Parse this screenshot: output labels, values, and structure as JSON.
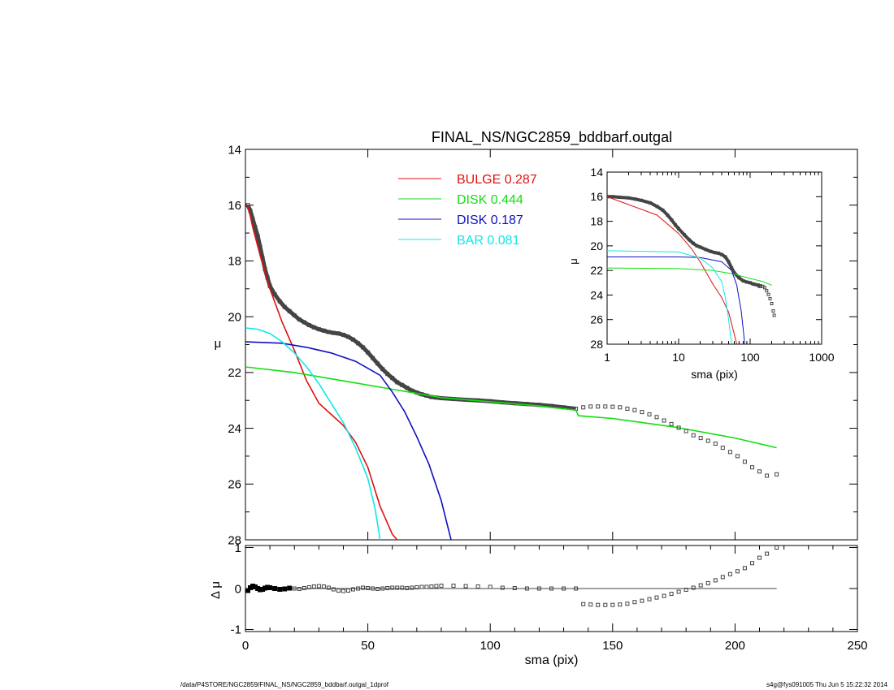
{
  "title": "FINAL_NS/NGC2859_bddbarf.outgal",
  "footer": {
    "left": "/data/P4STORE/NGC2859/FINAL_NS/NGC2859_bddbarf.outgal_1dprof",
    "right": "s4g@fys091005  Thu Jun  5 15:22:32 2014"
  },
  "colors": {
    "bulge": "#e01010",
    "disk1": "#10e010",
    "disk2": "#1010c0",
    "bar": "#10e8e8",
    "data": "#444444",
    "axis": "#000000"
  },
  "legend": [
    {
      "key": "bulge",
      "label": "BULGE",
      "value": "0.287",
      "color": "#e01010"
    },
    {
      "key": "disk1",
      "label": "DISK",
      "value": "0.444",
      "color": "#10e010"
    },
    {
      "key": "disk2",
      "label": "DISK",
      "value": "0.187",
      "color": "#1010c0"
    },
    {
      "key": "bar",
      "label": "BAR",
      "value": "0.081",
      "color": "#10e8e8"
    }
  ],
  "chart_data": [
    {
      "name": "main",
      "type": "line",
      "xlabel": "sma (pix)",
      "ylabel": "μ",
      "xlim": [
        0,
        250
      ],
      "ylim": [
        28,
        14
      ],
      "xticks": [
        0,
        50,
        100,
        150,
        200,
        250
      ],
      "yticks": [
        14,
        16,
        18,
        20,
        22,
        24,
        26,
        28
      ],
      "series": [
        {
          "name": "BULGE",
          "key": "bulge",
          "x": [
            1,
            3,
            6,
            10,
            15,
            20,
            25,
            30,
            35,
            40,
            45,
            50,
            55,
            60,
            62
          ],
          "y": [
            16.0,
            16.8,
            17.8,
            19.0,
            20.2,
            21.2,
            22.3,
            23.1,
            23.5,
            23.9,
            24.5,
            25.4,
            26.8,
            27.8,
            28.0
          ]
        },
        {
          "name": "DISK",
          "key": "disk1",
          "x": [
            0,
            20,
            40,
            60,
            80,
            100,
            120,
            135,
            136,
            150,
            175,
            200,
            217
          ],
          "y": [
            21.8,
            22.0,
            22.3,
            22.6,
            22.9,
            23.05,
            23.2,
            23.35,
            23.55,
            23.65,
            23.95,
            24.35,
            24.7
          ]
        },
        {
          "name": "DISK",
          "key": "disk2",
          "x": [
            0,
            15,
            25,
            35,
            45,
            55,
            60,
            65,
            70,
            75,
            80,
            82,
            84
          ],
          "y": [
            20.9,
            20.95,
            21.1,
            21.3,
            21.6,
            22.1,
            22.7,
            23.4,
            24.3,
            25.3,
            26.6,
            27.3,
            28.0
          ]
        },
        {
          "name": "BAR",
          "key": "bar",
          "x": [
            0,
            5,
            10,
            15,
            20,
            25,
            30,
            35,
            40,
            45,
            50,
            53,
            55
          ],
          "y": [
            20.4,
            20.45,
            20.6,
            20.9,
            21.3,
            21.8,
            22.4,
            23.1,
            23.8,
            24.7,
            25.8,
            26.9,
            28.0
          ]
        }
      ],
      "profile": {
        "x": [
          1,
          2,
          3,
          4,
          5,
          6,
          7,
          8,
          9,
          10,
          12,
          14,
          16,
          18,
          20,
          22,
          24,
          26,
          28,
          30,
          32,
          34,
          36,
          38,
          40,
          42,
          44,
          46,
          48,
          50,
          52,
          54,
          56,
          58,
          60,
          62,
          64,
          66,
          68,
          70,
          72,
          74,
          76,
          78,
          80,
          85,
          90,
          95,
          100,
          105,
          110,
          115,
          120,
          125,
          130,
          135
        ],
        "y": [
          16.0,
          16.2,
          16.5,
          16.8,
          17.1,
          17.5,
          17.9,
          18.3,
          18.6,
          18.9,
          19.2,
          19.45,
          19.65,
          19.8,
          19.95,
          20.1,
          20.2,
          20.3,
          20.38,
          20.45,
          20.5,
          20.55,
          20.58,
          20.6,
          20.65,
          20.72,
          20.82,
          20.95,
          21.1,
          21.28,
          21.48,
          21.68,
          21.88,
          22.05,
          22.2,
          22.35,
          22.45,
          22.55,
          22.65,
          22.72,
          22.78,
          22.83,
          22.88,
          22.9,
          22.92,
          22.95,
          22.98,
          23.0,
          23.03,
          23.07,
          23.1,
          23.13,
          23.16,
          23.2,
          23.25,
          23.3
        ]
      },
      "outer_points": {
        "x": [
          138,
          141,
          144,
          147,
          150,
          153,
          156,
          159,
          162,
          165,
          168,
          171,
          174,
          177,
          180,
          183,
          186,
          189,
          192,
          195,
          198,
          201,
          204,
          207,
          210,
          213,
          217
        ],
        "y": [
          23.25,
          23.22,
          23.22,
          23.22,
          23.23,
          23.25,
          23.3,
          23.35,
          23.42,
          23.5,
          23.6,
          23.72,
          23.85,
          23.98,
          24.1,
          24.25,
          24.35,
          24.45,
          24.55,
          24.7,
          24.85,
          25.0,
          25.2,
          25.4,
          25.55,
          25.7,
          25.65
        ]
      }
    },
    {
      "name": "residual",
      "type": "scatter",
      "xlabel": "sma (pix)",
      "ylabel": "Δ μ",
      "xlim": [
        0,
        250
      ],
      "ylim": [
        -1.05,
        1.05
      ],
      "xticks": [
        0,
        50,
        100,
        150,
        200,
        250
      ],
      "yticks": [
        -1,
        0,
        1
      ],
      "zero_line_x": [
        0,
        217
      ],
      "x": [
        1,
        2,
        3,
        4,
        5,
        6,
        7,
        8,
        9,
        10,
        12,
        14,
        16,
        18,
        20,
        22,
        24,
        26,
        28,
        30,
        32,
        34,
        36,
        38,
        40,
        42,
        44,
        46,
        48,
        50,
        52,
        54,
        56,
        58,
        60,
        62,
        64,
        66,
        68,
        70,
        72,
        74,
        76,
        78,
        80,
        85,
        90,
        95,
        100,
        105,
        110,
        115,
        120,
        125,
        130,
        135,
        138,
        141,
        144,
        147,
        150,
        153,
        156,
        159,
        162,
        165,
        168,
        171,
        174,
        177,
        180,
        183,
        186,
        189,
        192,
        195,
        198,
        201,
        204,
        207,
        210,
        213,
        217
      ],
      "y": [
        -0.05,
        0.02,
        0.06,
        0.04,
        0.0,
        -0.03,
        -0.02,
        0.01,
        0.03,
        0.02,
        0.0,
        -0.02,
        -0.01,
        0.01,
        0.0,
        -0.01,
        0.01,
        0.03,
        0.05,
        0.06,
        0.05,
        0.02,
        -0.02,
        -0.05,
        -0.06,
        -0.05,
        -0.02,
        0.0,
        0.02,
        0.01,
        0.0,
        -0.01,
        0.0,
        0.01,
        0.02,
        0.02,
        0.02,
        0.01,
        0.02,
        0.03,
        0.04,
        0.04,
        0.05,
        0.06,
        0.07,
        0.07,
        0.06,
        0.05,
        0.04,
        0.02,
        0.01,
        0.0,
        0.0,
        0.0,
        0.0,
        0.0,
        -0.38,
        -0.39,
        -0.4,
        -0.4,
        -0.4,
        -0.39,
        -0.37,
        -0.33,
        -0.3,
        -0.26,
        -0.22,
        -0.18,
        -0.13,
        -0.08,
        -0.03,
        0.02,
        0.08,
        0.13,
        0.2,
        0.28,
        0.35,
        0.42,
        0.5,
        0.62,
        0.75,
        0.85,
        1.0
      ]
    },
    {
      "name": "inset",
      "type": "line",
      "xlabel": "sma (pix)",
      "ylabel": "μ",
      "xscale": "log",
      "xlim": [
        1,
        1000
      ],
      "ylim": [
        28,
        14
      ],
      "xticks": [
        1,
        10,
        100,
        1000
      ],
      "xticklabels": [
        "1",
        "10",
        "100",
        "1000"
      ],
      "yticks": [
        14,
        16,
        18,
        20,
        22,
        24,
        26,
        28
      ],
      "series": [
        {
          "name": "BULGE",
          "key": "bulge",
          "x": [
            1,
            5,
            10,
            15,
            20,
            30,
            40,
            50,
            60,
            65
          ],
          "y": [
            16.0,
            17.5,
            19.0,
            20.2,
            21.3,
            23.1,
            24.2,
            25.4,
            27.2,
            28.0
          ]
        },
        {
          "name": "DISK",
          "key": "disk1",
          "x": [
            1,
            10,
            30,
            60,
            100,
            150,
            200
          ],
          "y": [
            21.8,
            21.85,
            22.0,
            22.3,
            22.65,
            22.9,
            23.2
          ]
        },
        {
          "name": "DISK",
          "key": "disk2",
          "x": [
            1,
            10,
            20,
            40,
            55,
            65,
            75,
            80,
            84
          ],
          "y": [
            20.9,
            20.9,
            20.95,
            21.3,
            22.0,
            23.2,
            25.3,
            26.8,
            28.0
          ]
        },
        {
          "name": "BAR",
          "key": "bar",
          "x": [
            1,
            10,
            20,
            30,
            40,
            45,
            50,
            55
          ],
          "y": [
            20.4,
            20.5,
            21.0,
            21.8,
            22.9,
            24.2,
            26.0,
            28.0
          ]
        }
      ],
      "profile": {
        "x": [
          1,
          1.2,
          1.5,
          2,
          2.5,
          3,
          4,
          5,
          6,
          7,
          8,
          9,
          10,
          12,
          14,
          16,
          18,
          20,
          24,
          28,
          32,
          36,
          40,
          45,
          50,
          55,
          60,
          70,
          80,
          90,
          100,
          110,
          120,
          130,
          135
        ],
        "y": [
          16.0,
          16.0,
          16.05,
          16.1,
          16.2,
          16.3,
          16.5,
          16.8,
          17.1,
          17.5,
          17.9,
          18.3,
          18.6,
          19.1,
          19.5,
          19.8,
          20.0,
          20.1,
          20.3,
          20.45,
          20.55,
          20.6,
          20.7,
          20.9,
          21.3,
          21.8,
          22.2,
          22.6,
          22.85,
          22.95,
          23.0,
          23.1,
          23.15,
          23.2,
          23.3
        ]
      },
      "outer_points": {
        "x": [
          140,
          150,
          160,
          170,
          180,
          190,
          200,
          210,
          217
        ],
        "y": [
          23.25,
          23.3,
          23.4,
          23.65,
          23.95,
          24.3,
          24.7,
          25.3,
          25.65
        ]
      }
    }
  ]
}
